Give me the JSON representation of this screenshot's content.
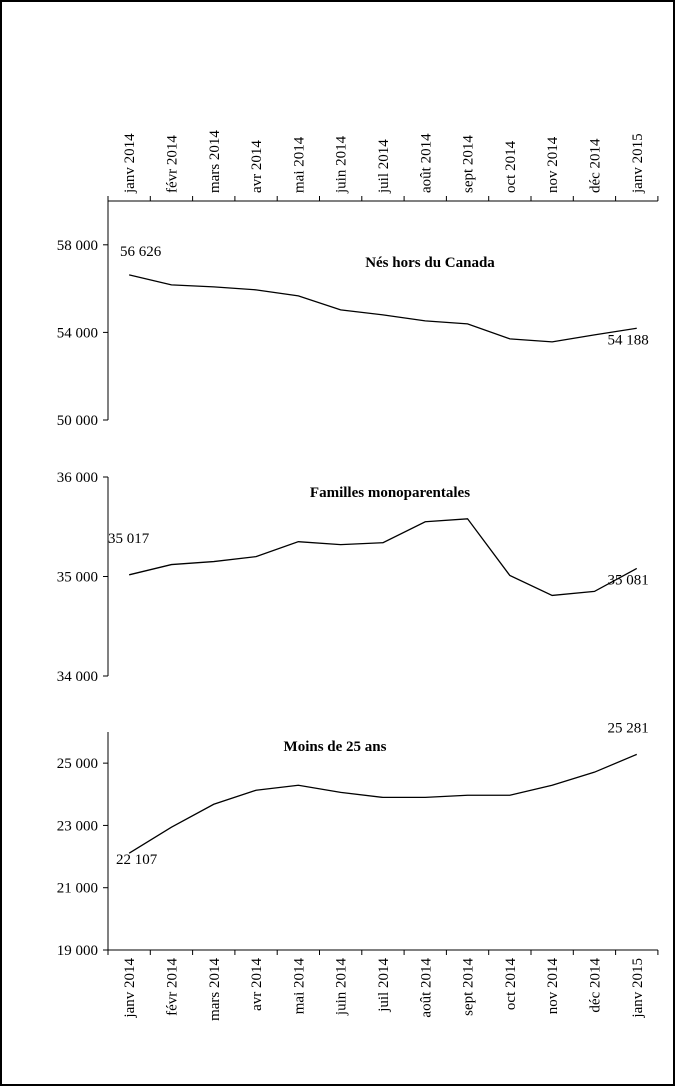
{
  "chart_data": [
    {
      "type": "line",
      "title": "Nés hors du Canada",
      "x_axis_position": "top",
      "categories": [
        "janv 2014",
        "févr 2014",
        "mars 2014",
        "avr 2014",
        "mai 2014",
        "juin 2014",
        "juil 2014",
        "août 2014",
        "sept 2014",
        "oct 2014",
        "nov 2014",
        "déc 2014",
        "janv 2015"
      ],
      "series": [
        {
          "color": "#000000",
          "values": [
            56626,
            56171,
            56080,
            55943,
            55669,
            55029,
            54800,
            54526,
            54389,
            53703,
            53566,
            53886,
            54188
          ],
          "value_labels": [
            "56 626",
            null,
            null,
            null,
            null,
            null,
            null,
            null,
            null,
            null,
            null,
            null,
            "54 188"
          ]
        }
      ],
      "ylim": [
        50000,
        60000
      ],
      "yticks": [
        {
          "value": 50000,
          "label": "50 000"
        },
        {
          "value": 54000,
          "label": "54 000"
        },
        {
          "value": 58000,
          "label": "58 000"
        }
      ]
    },
    {
      "type": "line",
      "title": "Familles monoparentales",
      "series": [
        {
          "color": "#000000",
          "values": [
            35017,
            35120,
            35150,
            35200,
            35350,
            35320,
            35340,
            35550,
            35580,
            35010,
            34810,
            34850,
            35081
          ],
          "value_labels": [
            "35 017",
            null,
            null,
            null,
            null,
            null,
            null,
            null,
            null,
            null,
            null,
            null,
            "35 081"
          ]
        }
      ],
      "ylim": [
        34000,
        36000
      ],
      "yticks": [
        {
          "value": 34000,
          "label": "34 000"
        },
        {
          "value": 35000,
          "label": "35 000"
        },
        {
          "value": 36000,
          "label": "36 000"
        }
      ]
    },
    {
      "type": "line",
      "title": "Moins de 25 ans",
      "x_axis_position": "bottom",
      "categories": [
        "janv 2014",
        "févr 2014",
        "mars 2014",
        "avr 2014",
        "mai 2014",
        "juin 2014",
        "juil 2014",
        "août 2014",
        "sept 2014",
        "oct 2014",
        "nov 2014",
        "déc 2014",
        "janv 2015"
      ],
      "series": [
        {
          "color": "#000000",
          "values": [
            22107,
            22942,
            23680,
            24130,
            24290,
            24060,
            23900,
            23900,
            23970,
            23970,
            24290,
            24710,
            25281
          ],
          "value_labels": [
            "22 107",
            null,
            null,
            null,
            null,
            null,
            null,
            null,
            null,
            null,
            null,
            null,
            "25 281"
          ]
        }
      ],
      "ylim": [
        19000,
        26000
      ],
      "yticks": [
        {
          "value": 19000,
          "label": "19 000"
        },
        {
          "value": 21000,
          "label": "21 000"
        },
        {
          "value": 23000,
          "label": "23 000"
        },
        {
          "value": 25000,
          "label": "25 000"
        }
      ]
    }
  ]
}
